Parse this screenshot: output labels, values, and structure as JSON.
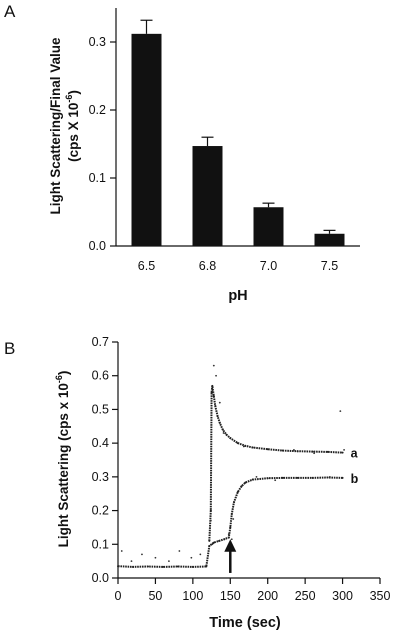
{
  "chart_data": [
    {
      "panel": "A",
      "type": "bar",
      "categories": [
        "6.5",
        "6.8",
        "7.0",
        "7.5"
      ],
      "values": [
        0.312,
        0.147,
        0.057,
        0.018
      ],
      "errors": [
        0.02,
        0.013,
        0.006,
        0.005
      ],
      "xlabel": "pH",
      "ylabel_line1": "Light Scattering/Final Value",
      "ylabel_line2_prefix": "(cps X 10",
      "ylabel_exp": "-6",
      "ylabel_line2_suffix": ")",
      "ylim": [
        0,
        0.35
      ],
      "yticks": [
        "0.0",
        "0.1",
        "0.2",
        "0.3"
      ],
      "grid": false,
      "bar_color": "#111111"
    },
    {
      "panel": "B",
      "type": "scatter",
      "xlabel": "Time (sec)",
      "ylabel_prefix": "Light Scattering (cps x 10",
      "ylabel_exp": "-6",
      "ylabel_suffix": ")",
      "xlim": [
        0,
        350
      ],
      "ylim": [
        0,
        0.7
      ],
      "xticks": [
        "0",
        "50",
        "100",
        "150",
        "200",
        "250",
        "300",
        "350"
      ],
      "yticks": [
        "0.0",
        "0.1",
        "0.2",
        "0.3",
        "0.4",
        "0.5",
        "0.6",
        "0.7"
      ],
      "series": [
        {
          "name": "a",
          "x": [
            122,
            124,
            125,
            126,
            128,
            130,
            133,
            136,
            140,
            145,
            150,
            160,
            170,
            180,
            200,
            220,
            240,
            260,
            280,
            300
          ],
          "y": [
            0.11,
            0.2,
            0.55,
            0.57,
            0.54,
            0.51,
            0.48,
            0.46,
            0.44,
            0.425,
            0.415,
            0.4,
            0.392,
            0.387,
            0.382,
            0.378,
            0.376,
            0.375,
            0.374,
            0.372
          ]
        },
        {
          "name": "b",
          "x": [
            0,
            20,
            40,
            60,
            80,
            100,
            118,
            122,
            128,
            135,
            142,
            148,
            150,
            152,
            155,
            160,
            165,
            170,
            180,
            200,
            220,
            240,
            260,
            280,
            300
          ],
          "y": [
            0.035,
            0.033,
            0.034,
            0.033,
            0.034,
            0.033,
            0.034,
            0.095,
            0.105,
            0.11,
            0.115,
            0.12,
            0.15,
            0.19,
            0.225,
            0.255,
            0.272,
            0.283,
            0.292,
            0.296,
            0.297,
            0.297,
            0.297,
            0.298,
            0.297
          ]
        }
      ],
      "scatter_points": [
        [
          5,
          0.08
        ],
        [
          18,
          0.05
        ],
        [
          32,
          0.07
        ],
        [
          50,
          0.06
        ],
        [
          68,
          0.05
        ],
        [
          82,
          0.08
        ],
        [
          98,
          0.06
        ],
        [
          110,
          0.07
        ],
        [
          124,
          0.17
        ],
        [
          126,
          0.1
        ],
        [
          128,
          0.63
        ],
        [
          131,
          0.6
        ],
        [
          136,
          0.52
        ],
        [
          141,
          0.43
        ],
        [
          148,
          0.13
        ],
        [
          152,
          0.115
        ],
        [
          154,
          0.175
        ],
        [
          168,
          0.39
        ],
        [
          185,
          0.3
        ],
        [
          210,
          0.29
        ],
        [
          235,
          0.38
        ],
        [
          262,
          0.37
        ],
        [
          283,
          0.3
        ],
        [
          297,
          0.495
        ],
        [
          302,
          0.38
        ]
      ],
      "arrow_at_x": 150,
      "grid": false
    }
  ],
  "labels": {
    "panel_a": "A",
    "panel_b": "B",
    "curve_a": "a",
    "curve_b": "b"
  }
}
